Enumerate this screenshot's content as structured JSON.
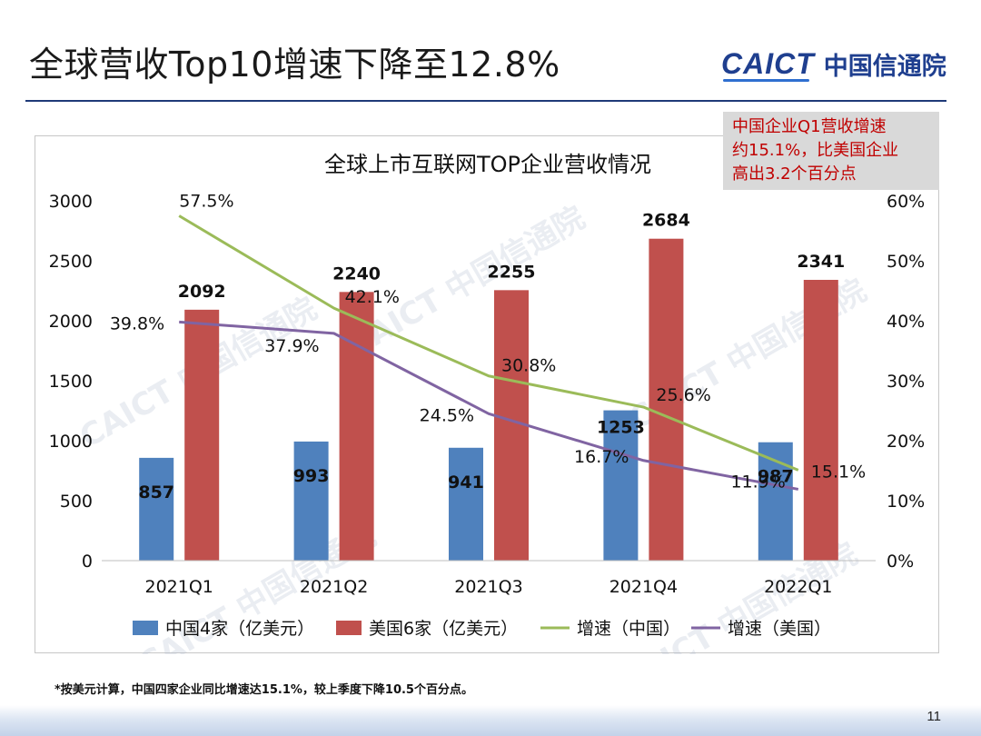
{
  "slide": {
    "title": "全球营收Top10增速下降至12.8%",
    "logo_mark": "CAICT",
    "logo_cn": "中国信通院",
    "callout_lines": [
      "中国企业Q1营收增速",
      "约15.1%，比美国企业",
      "高出3.2个百分点"
    ],
    "footnote": "*按美元计算，中国四家企业同比增速达15.1%，较上季度下降10.5个百分点。",
    "page_number": "11",
    "watermark_text": "CAICT 中国信通院"
  },
  "colors": {
    "china_bar": "#4f81bd",
    "us_bar": "#c0504d",
    "china_growth_line": "#9bbb59",
    "us_growth_line": "#8064a2",
    "title_rule": "#1f3a78",
    "callout_text": "#c00000",
    "callout_bg": "#d9d9d9"
  },
  "chart_data": {
    "type": "bar",
    "title": "全球上市互联网TOP企业营收情况",
    "categories": [
      "2021Q1",
      "2021Q2",
      "2021Q3",
      "2021Q4",
      "2022Q1"
    ],
    "ylim": [
      0,
      3000
    ],
    "yticks": [
      0,
      500,
      1000,
      1500,
      2000,
      2500,
      3000
    ],
    "y2lim": [
      0,
      60
    ],
    "y2ticks": [
      "0%",
      "10%",
      "20%",
      "30%",
      "40%",
      "50%",
      "60%"
    ],
    "series": [
      {
        "name": "中国4家（亿美元）",
        "type": "bar",
        "axis": "left",
        "values": [
          857,
          993,
          941,
          1253,
          987
        ],
        "labels": [
          "857",
          "993",
          "941",
          "1253",
          "987"
        ]
      },
      {
        "name": "美国6家（亿美元）",
        "type": "bar",
        "axis": "left",
        "values": [
          2092,
          2240,
          2255,
          2684,
          2341
        ],
        "labels": [
          "2092",
          "2240",
          "2255",
          "2684",
          "2341"
        ]
      },
      {
        "name": "增速（中国）",
        "type": "line",
        "axis": "right",
        "values": [
          57.5,
          42.1,
          30.8,
          25.6,
          15.1
        ],
        "labels": [
          "57.5%",
          "42.1%",
          "30.8%",
          "25.6%",
          "15.1%"
        ]
      },
      {
        "name": "增速（美国）",
        "type": "line",
        "axis": "right",
        "values": [
          39.8,
          37.9,
          24.5,
          16.7,
          11.9
        ],
        "labels": [
          "39.8%",
          "37.9%",
          "24.5%",
          "16.7%",
          "11.9%"
        ]
      }
    ],
    "legend_position": "bottom",
    "grid": false
  }
}
